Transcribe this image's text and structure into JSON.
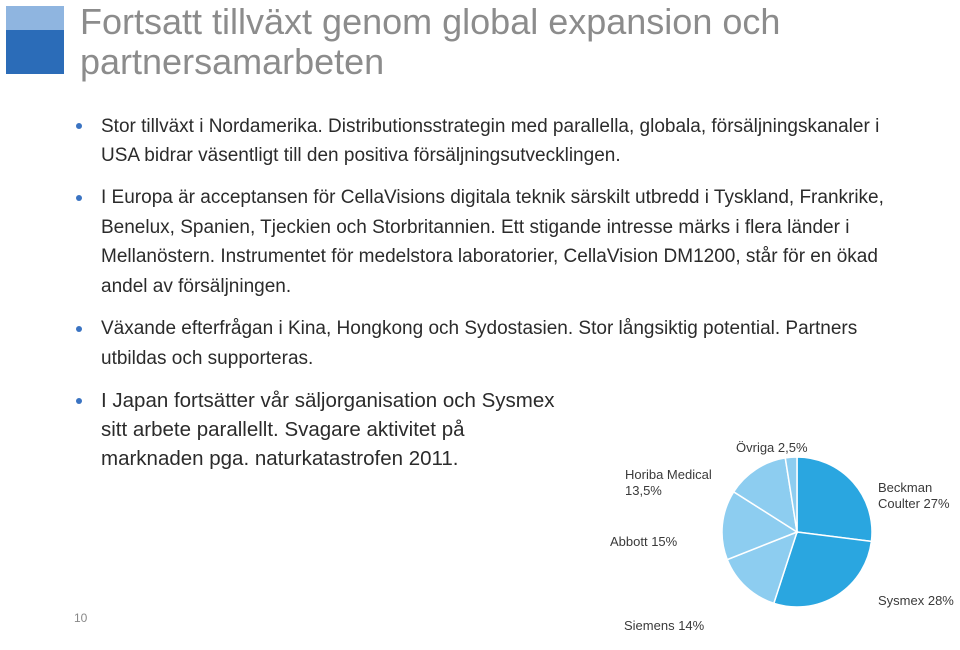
{
  "slide": {
    "title": "Fortsatt tillväxt genom global expansion och partnersamarbeten",
    "page_number": "10",
    "bullets": [
      "Stor tillväxt i Nordamerika. Distributionsstrategin med parallella, globala, försäljningskanaler i USA bidrar väsentligt till den positiva försäljningsutvecklingen.",
      "I Europa är acceptansen för CellaVisions digitala teknik särskilt utbredd i Tyskland, Frankrike, Benelux, Spanien, Tjeckien och Storbritannien. Ett stigande intresse märks i flera länder i Mellanöstern. Instrumentet för medelstora laboratorier, CellaVision DM1200, står för en ökad andel av försäljningen.",
      "Växande efterfrågan i Kina, Hongkong och Sydostasien. Stor långsiktig potential. Partners utbildas och supporteras.",
      "I Japan fortsätter vår säljorganisation och Sysmex sitt arbete parallellt. Svagare aktivitet på marknaden pga. naturkatastrofen 2011."
    ]
  },
  "chart_data": {
    "type": "pie",
    "title": "",
    "slices": [
      {
        "name": "Beckman Coulter",
        "value": 27,
        "label_lines": [
          "Beckman",
          "Coulter 27%"
        ],
        "color": "#2aa6e0"
      },
      {
        "name": "Sysmex",
        "value": 28,
        "label_lines": [
          "Sysmex 28%"
        ],
        "color": "#2aa6e0"
      },
      {
        "name": "Siemens",
        "value": 14,
        "label_lines": [
          "Siemens 14%"
        ],
        "color": "#8dcdf0"
      },
      {
        "name": "Abbott",
        "value": 15,
        "label_lines": [
          "Abbott 15%"
        ],
        "color": "#8dcdf0"
      },
      {
        "name": "Horiba Medical",
        "value": 13.5,
        "label_lines": [
          "Horiba Medical",
          "13,5%"
        ],
        "color": "#8dcdf0"
      },
      {
        "name": "Övriga",
        "value": 2.5,
        "label_lines": [
          "Övriga 2,5%"
        ],
        "color": "#8dcdf0"
      }
    ]
  }
}
